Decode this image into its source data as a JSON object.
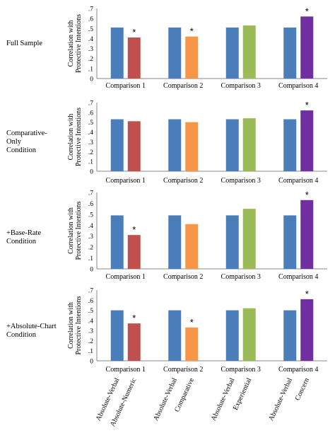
{
  "ylabel": "Correlation with Protective Intentions",
  "rows": [
    {
      "label_lines": [
        "Full Sample"
      ]
    },
    {
      "label_lines": [
        "Comparative-",
        "Only",
        "Condition"
      ]
    },
    {
      "label_lines": [
        "+Base-Rate",
        "Condition"
      ]
    },
    {
      "label_lines": [
        "+Absolute-Chart",
        "Condition"
      ]
    }
  ],
  "bottom_labels": [
    [
      "Absolute-Verbal",
      "Absolute-Numeric"
    ],
    [
      "Absolute-Verbal",
      "Comparative"
    ],
    [
      "Absolute-Verbal",
      "Experiential"
    ],
    [
      "Absolute-Verbal",
      "Concern"
    ]
  ],
  "colors": {
    "blue": "#4a7ebb",
    "red": "#c0504d",
    "orange": "#f79646",
    "green": "#9bbb59",
    "purple": "#7030a0"
  },
  "chart_data": [
    {
      "type": "bar",
      "categories": [
        "Comparison 1",
        "Comparison 2",
        "Comparison 3",
        "Comparison 4"
      ],
      "ylim": [
        0,
        0.7
      ],
      "yticks": [
        "0",
        ".1",
        ".2",
        ".3",
        ".4",
        ".5",
        ".6",
        ".7"
      ],
      "ylabel": "Correlation with Protective Intentions",
      "series": [
        {
          "values": [
            0.51,
            0.51,
            0.51,
            0.51
          ],
          "colors": [
            "blue",
            "blue",
            "blue",
            "blue"
          ]
        },
        {
          "values": [
            0.41,
            0.42,
            0.53,
            0.62
          ],
          "colors": [
            "red",
            "orange",
            "green",
            "purple"
          ]
        }
      ],
      "significant": [
        true,
        true,
        false,
        true
      ]
    },
    {
      "type": "bar",
      "categories": [
        "Comparison 1",
        "Comparison 2",
        "Comparison 3",
        "Comparison 4"
      ],
      "ylim": [
        0,
        0.7
      ],
      "yticks": [
        "0",
        ".1",
        ".2",
        ".3",
        ".4",
        ".5",
        ".6",
        ".7"
      ],
      "ylabel": "Correlation with Protective Intentions",
      "series": [
        {
          "values": [
            0.53,
            0.53,
            0.53,
            0.53
          ],
          "colors": [
            "blue",
            "blue",
            "blue",
            "blue"
          ]
        },
        {
          "values": [
            0.51,
            0.5,
            0.54,
            0.62
          ],
          "colors": [
            "red",
            "orange",
            "green",
            "purple"
          ]
        }
      ],
      "significant": [
        false,
        false,
        false,
        true
      ]
    },
    {
      "type": "bar",
      "categories": [
        "Comparison 1",
        "Comparison 2",
        "Comparison 3",
        "Comparison 4"
      ],
      "ylim": [
        0,
        0.7
      ],
      "yticks": [
        "0",
        ".1",
        ".2",
        ".3",
        ".4",
        ".5",
        ".6",
        ".7"
      ],
      "ylabel": "Correlation with Protective Intentions",
      "series": [
        {
          "values": [
            0.49,
            0.49,
            0.49,
            0.49
          ],
          "colors": [
            "blue",
            "blue",
            "blue",
            "blue"
          ]
        },
        {
          "values": [
            0.31,
            0.41,
            0.55,
            0.63
          ],
          "colors": [
            "red",
            "orange",
            "green",
            "purple"
          ]
        }
      ],
      "significant": [
        true,
        false,
        false,
        true
      ]
    },
    {
      "type": "bar",
      "categories": [
        "Comparison 1",
        "Comparison 2",
        "Comparison 3",
        "Comparison 4"
      ],
      "ylim": [
        0,
        0.7
      ],
      "yticks": [
        "0",
        ".1",
        ".2",
        ".3",
        ".4",
        ".5",
        ".6",
        ".7"
      ],
      "ylabel": "Correlation with Protective Intentions",
      "series": [
        {
          "values": [
            0.5,
            0.5,
            0.5,
            0.5
          ],
          "colors": [
            "blue",
            "blue",
            "blue",
            "blue"
          ]
        },
        {
          "values": [
            0.37,
            0.33,
            0.52,
            0.61
          ],
          "colors": [
            "red",
            "orange",
            "green",
            "purple"
          ]
        }
      ],
      "significant": [
        true,
        true,
        false,
        true
      ]
    }
  ]
}
